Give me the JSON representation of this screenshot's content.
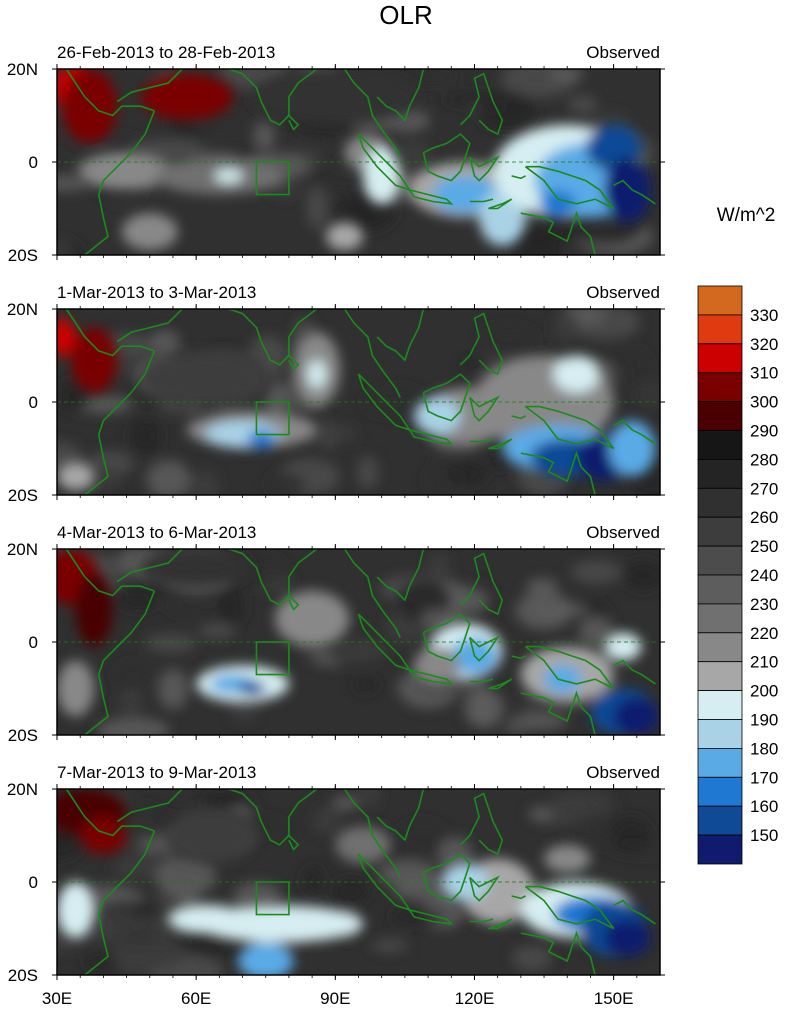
{
  "figure": {
    "title": "OLR",
    "units": "W/m^2",
    "panels": [
      {
        "period": "26-Feb-2013 to 28-Feb-2013",
        "label": "Observed"
      },
      {
        "period": "1-Mar-2013 to 3-Mar-2013",
        "label": "Observed"
      },
      {
        "period": "4-Mar-2013 to 6-Mar-2013",
        "label": "Observed"
      },
      {
        "period": "7-Mar-2013 to 9-Mar-2013",
        "label": "Observed"
      }
    ],
    "lat_ticks": [
      {
        "value": 20,
        "label": "20N"
      },
      {
        "value": 0,
        "label": "0"
      },
      {
        "value": -20,
        "label": "20S"
      }
    ],
    "lon_ticks": [
      {
        "value": 30,
        "label": "30E"
      },
      {
        "value": 60,
        "label": "60E"
      },
      {
        "value": 90,
        "label": "90E"
      },
      {
        "value": 120,
        "label": "120E"
      },
      {
        "value": 150,
        "label": "150E"
      }
    ],
    "lon_range": [
      30,
      160
    ],
    "lat_range": [
      -20,
      20
    ],
    "colorbar": {
      "labels": [
        "330",
        "320",
        "310",
        "300",
        "290",
        "280",
        "270",
        "260",
        "250",
        "240",
        "230",
        "220",
        "210",
        "200",
        "190",
        "180",
        "170",
        "160",
        "150"
      ],
      "colors": [
        "#d2691e",
        "#e03a10",
        "#cc0000",
        "#7a0000",
        "#4a0000",
        "#161616",
        "#242424",
        "#303030",
        "#3d3d3d",
        "#4c4c4c",
        "#5d5d5d",
        "#707070",
        "#888888",
        "#a7a7a7",
        "#d6eef2",
        "#a9d2e6",
        "#5aaae6",
        "#1f78d2",
        "#0e4a96",
        "#101a6e"
      ]
    },
    "region_box": {
      "lon_min": 73,
      "lon_max": 80,
      "lat_min": -7,
      "lat_max": 0
    }
  }
}
